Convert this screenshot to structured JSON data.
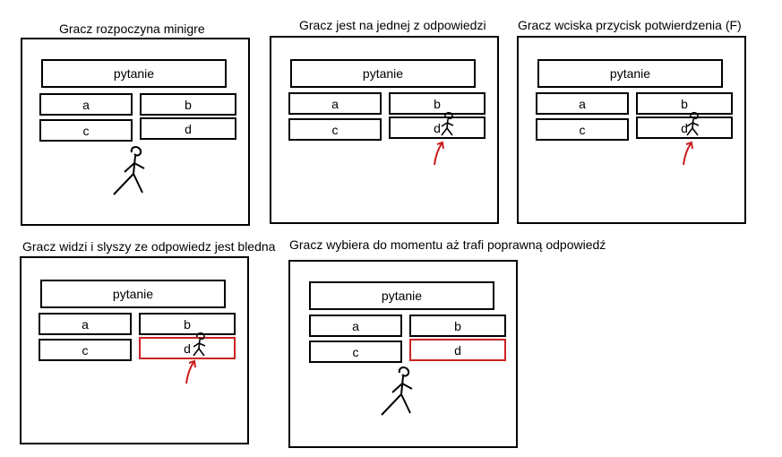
{
  "captions": [
    "Gracz rozpoczyna minigre",
    "Gracz jest na jednej z odpowiedzi",
    "Gracz wciska przycisk potwierdzenia (F)",
    "Gracz widzi i slyszy ze odpowiedz jest bledna",
    "Gracz wybiera do momentu aż trafi poprawną odpowiedź"
  ],
  "question_label": "pytanie",
  "answers": [
    "a",
    "b",
    "c",
    "d"
  ],
  "colors": {
    "wrong_answer": "#cc2222",
    "arrow": "#cc2222",
    "outline": "#000000"
  }
}
